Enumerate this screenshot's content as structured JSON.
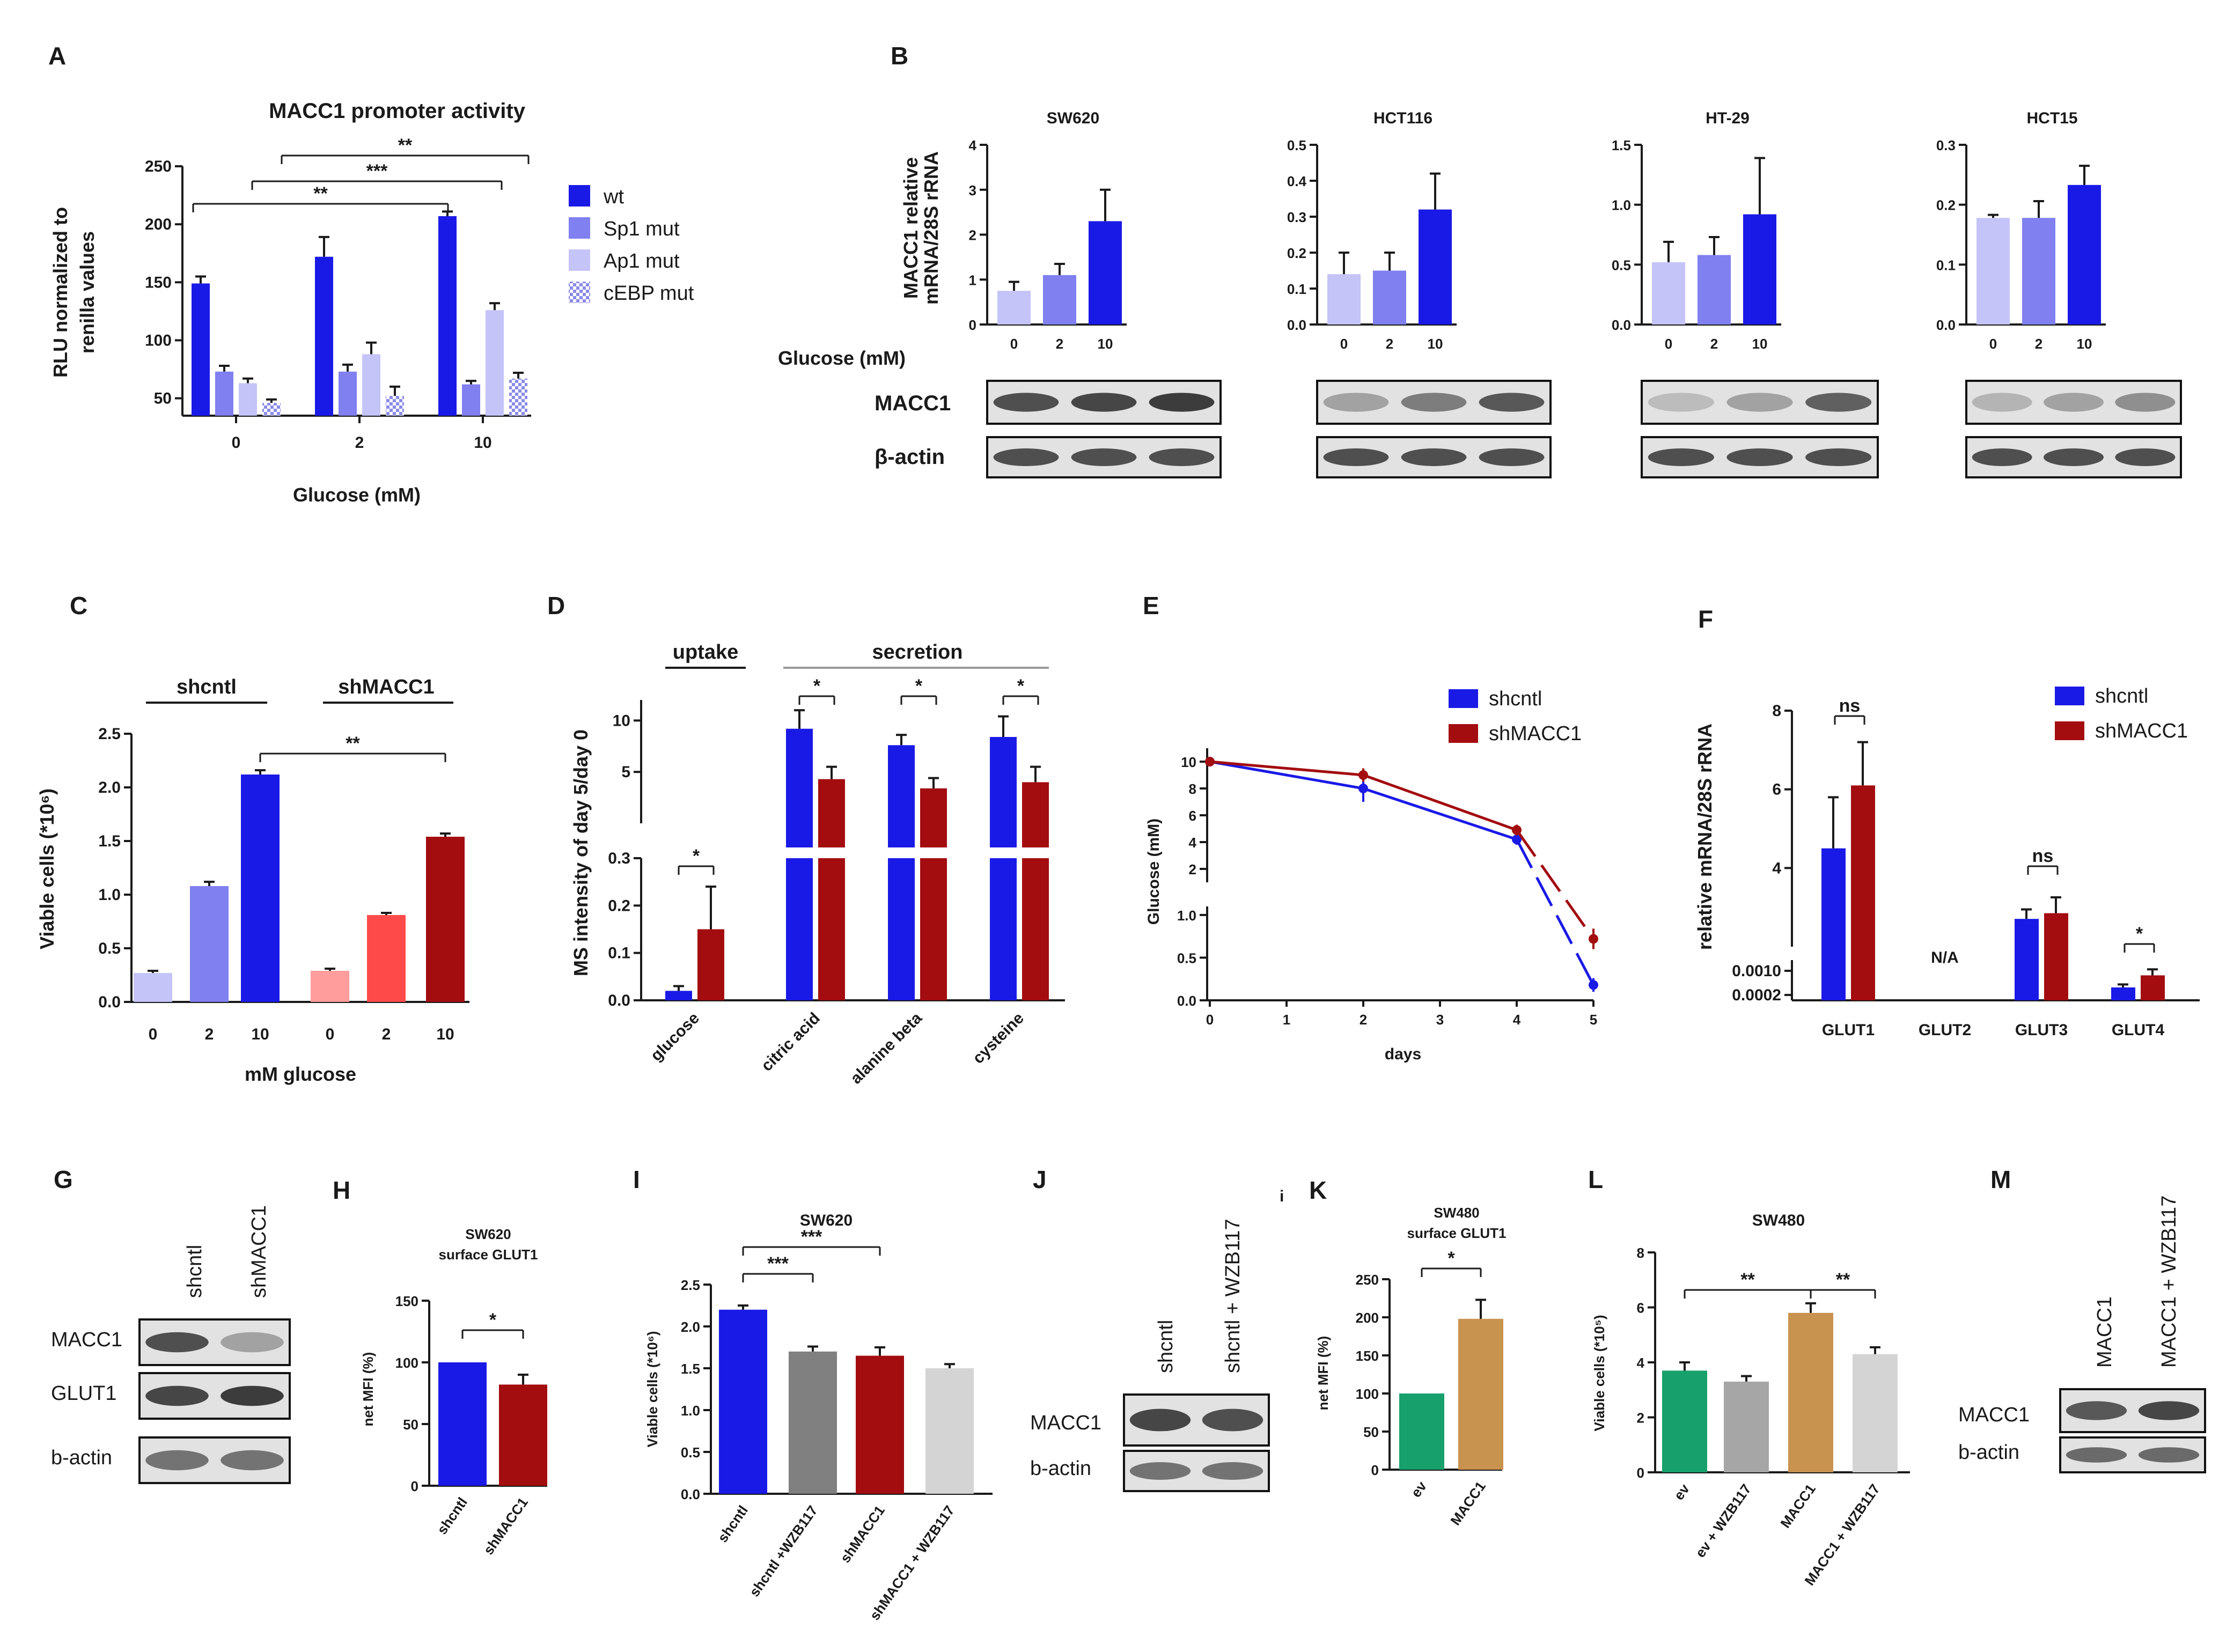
{
  "panels": {
    "A": "A",
    "B": "B",
    "C": "C",
    "D": "D",
    "E": "E",
    "F": "F",
    "G": "G",
    "H": "H",
    "I": "I",
    "J": "J",
    "K": "K",
    "L": "L",
    "M": "M"
  },
  "stray_mark": "i",
  "colors": {
    "blue": "#1a1ae6",
    "mid_blue": "#8080f0",
    "light_blue": "#c4c4f8",
    "dark_red": "#a30d10",
    "red": "#ff4a4a",
    "pink": "#ff9c9c",
    "gray": "#808080",
    "light_gray": "#d4d4d4",
    "green": "#17a06b",
    "tan": "#c8924f",
    "mid_gray": "#a6a6a6"
  },
  "chart_data": [
    {
      "id": "A",
      "type": "bar",
      "title": "MACC1 promoter activity",
      "ylabel": "RLU normalized to renilla values",
      "xlabel": "Glucose (mM)",
      "categories": [
        "0",
        "2",
        "10"
      ],
      "series": [
        {
          "name": "wt",
          "values": [
            149,
            172,
            207
          ],
          "errors": [
            6,
            17,
            4
          ]
        },
        {
          "name": "Sp1 mut",
          "values": [
            73,
            73,
            62
          ],
          "errors": [
            5,
            6,
            3
          ]
        },
        {
          "name": "Ap1 mut",
          "values": [
            63,
            88,
            126
          ],
          "errors": [
            4,
            10,
            6
          ]
        },
        {
          "name": "cEBP mut",
          "values": [
            46,
            52,
            67
          ],
          "errors": [
            3,
            8,
            5
          ]
        }
      ],
      "ylim": [
        35,
        250
      ],
      "yticks": [
        "50",
        "100",
        "150",
        "200",
        "250"
      ],
      "significance": [
        "**",
        "***",
        "**"
      ],
      "legend_placement": "right"
    },
    {
      "id": "B",
      "type": "bar",
      "ylabel": "MACC1 relative mRNA/28S rRNA",
      "xlabel": "Glucose (mM)",
      "categories": [
        "0",
        "2",
        "10"
      ],
      "subcharts": [
        {
          "title": "SW620",
          "values": [
            0.75,
            1.1,
            2.3
          ],
          "errors": [
            0.2,
            0.25,
            0.7
          ],
          "ylim": [
            0,
            4
          ],
          "yticks": [
            "0",
            "1",
            "2",
            "3",
            "4"
          ]
        },
        {
          "title": "HCT116",
          "values": [
            0.14,
            0.15,
            0.32
          ],
          "errors": [
            0.06,
            0.05,
            0.1
          ],
          "ylim": [
            0,
            0.5
          ],
          "yticks": [
            "0.0",
            "0.1",
            "0.2",
            "0.3",
            "0.4",
            "0.5"
          ]
        },
        {
          "title": "HT-29",
          "values": [
            0.52,
            0.58,
            0.92
          ],
          "errors": [
            0.17,
            0.15,
            0.47
          ],
          "ylim": [
            0,
            1.5
          ],
          "yticks": [
            "0.0",
            "0.5",
            "1.0",
            "1.5"
          ]
        },
        {
          "title": "HCT15",
          "values": [
            0.178,
            0.178,
            0.233
          ],
          "errors": [
            0.005,
            0.028,
            0.032
          ],
          "ylim": [
            0,
            0.3
          ],
          "yticks": [
            "0.0",
            "0.1",
            "0.2",
            "0.3"
          ]
        }
      ],
      "blot_labels": [
        "MACC1",
        "β-actin"
      ]
    },
    {
      "id": "C",
      "type": "bar",
      "ylabel": "Viable cells (*10⁶)",
      "xlabel": "mM glucose",
      "groups": [
        "shcntl",
        "shMACC1"
      ],
      "categories": [
        "0",
        "2",
        "10",
        "0",
        "2",
        "10"
      ],
      "values": [
        0.27,
        1.08,
        2.12,
        0.29,
        0.81,
        1.54
      ],
      "errors": [
        0.02,
        0.04,
        0.04,
        0.02,
        0.02,
        0.03
      ],
      "ylim": [
        0,
        2.5
      ],
      "yticks": [
        "0.0",
        "0.5",
        "1.0",
        "1.5",
        "2.0",
        "2.5"
      ],
      "significance": [
        "**"
      ]
    },
    {
      "id": "D",
      "type": "bar",
      "ylabel": "MS intensity of day 5/day 0",
      "groups": [
        "uptake",
        "secretion"
      ],
      "categories": [
        "glucose",
        "citric acid",
        "alanine beta",
        "cysteine"
      ],
      "series": [
        {
          "name": "shcntl",
          "values": [
            0.02,
            9.2,
            7.6,
            8.4
          ],
          "errors": [
            0.01,
            1.8,
            1.0,
            2.0
          ]
        },
        {
          "name": "shMACC1",
          "values": [
            0.15,
            4.3,
            3.4,
            4.0
          ],
          "errors": [
            0.09,
            1.2,
            1.0,
            1.5
          ]
        }
      ],
      "y_upper": {
        "ylim": [
          0,
          12
        ],
        "yticks": [
          "5",
          "10"
        ]
      },
      "y_lower": {
        "ylim": [
          0,
          0.3
        ],
        "yticks": [
          "0.0",
          "0.1",
          "0.2",
          "0.3"
        ]
      },
      "significance": [
        "*",
        "*",
        "*",
        "*"
      ]
    },
    {
      "id": "E",
      "type": "line",
      "ylabel": "Glucose (mM)",
      "xlabel": "days",
      "x": [
        0,
        2,
        4,
        5
      ],
      "series": [
        {
          "name": "shcntl",
          "values": [
            10,
            8,
            4.2,
            0.18
          ],
          "errors": [
            0.3,
            1.0,
            0.4,
            0.08
          ]
        },
        {
          "name": "shMACC1",
          "values": [
            10,
            9,
            4.9,
            0.72
          ],
          "errors": [
            0.3,
            0.5,
            0.4,
            0.12
          ]
        }
      ],
      "xticks": [
        "0",
        "1",
        "2",
        "3",
        "4",
        "5"
      ],
      "y_upper": {
        "ylim": [
          0,
          11
        ],
        "yticks": [
          "2",
          "4",
          "6",
          "8",
          "10"
        ]
      },
      "y_lower": {
        "ylim": [
          0,
          1.1
        ],
        "yticks": [
          "0.0",
          "0.5",
          "1.0"
        ]
      },
      "legend_placement": "top-right"
    },
    {
      "id": "F",
      "type": "bar",
      "ylabel": "relative mRNA/28S rRNA",
      "categories": [
        "GLUT1",
        "GLUT2",
        "GLUT3",
        "GLUT4"
      ],
      "series": [
        {
          "name": "shcntl",
          "values": [
            4.5,
            null,
            0.0075,
            0.00045
          ],
          "errors": [
            1.3,
            null,
            0.0015,
            0.0001
          ]
        },
        {
          "name": "shMACC1",
          "values": [
            6.1,
            null,
            0.0084,
            0.00085
          ],
          "errors": [
            1.1,
            null,
            0.0025,
            0.0002
          ]
        }
      ],
      "na_label": "N/A",
      "yticks_upper": [
        "4",
        "6",
        "8"
      ],
      "yticks_lower": [
        "0.0010",
        "0.0002"
      ],
      "significance": [
        "ns",
        "ns",
        "*"
      ],
      "legend_placement": "top-right"
    },
    {
      "id": "G",
      "type": "table",
      "columns": [
        "shcntl",
        "shMACC1"
      ],
      "rows": [
        "MACC1",
        "GLUT1",
        "b-actin"
      ]
    },
    {
      "id": "H",
      "type": "bar",
      "title": "SW620 surface GLUT1",
      "title_lines": [
        "SW620",
        "surface GLUT1"
      ],
      "ylabel": "net MFI (%)",
      "categories": [
        "shcntl",
        "shMACC1"
      ],
      "values": [
        100,
        82
      ],
      "errors": [
        0,
        8
      ],
      "ylim": [
        0,
        150
      ],
      "yticks": [
        "0",
        "50",
        "100",
        "150"
      ],
      "significance": [
        "*"
      ]
    },
    {
      "id": "I",
      "type": "bar",
      "title": "SW620",
      "ylabel": "Viable cells (*10⁶)",
      "categories": [
        "shcntl",
        "shcntl +WZB117",
        "shMACC1",
        "shMACC1 + WZB117"
      ],
      "values": [
        2.2,
        1.7,
        1.65,
        1.5
      ],
      "errors": [
        0.05,
        0.06,
        0.1,
        0.05
      ],
      "ylim": [
        0,
        2.5
      ],
      "yticks": [
        "0.0",
        "0.5",
        "1.0",
        "1.5",
        "2.0",
        "2.5"
      ],
      "significance": [
        "***",
        "***"
      ]
    },
    {
      "id": "J",
      "type": "table",
      "columns": [
        "shcntl",
        "shcntl + WZB117"
      ],
      "rows": [
        "MACC1",
        "b-actin"
      ]
    },
    {
      "id": "K",
      "type": "bar",
      "title": "SW480 surface GLUT1",
      "title_lines": [
        "SW480",
        "surface GLUT1"
      ],
      "ylabel": "net MFI (%)",
      "categories": [
        "ev",
        "MACC1"
      ],
      "values": [
        100,
        198
      ],
      "errors": [
        0,
        25
      ],
      "ylim": [
        0,
        250
      ],
      "yticks": [
        "0",
        "50",
        "100",
        "150",
        "200",
        "250"
      ],
      "significance": [
        "*"
      ]
    },
    {
      "id": "L",
      "type": "bar",
      "title": "SW480",
      "ylabel": "Viable cells (*10⁵)",
      "categories": [
        "ev",
        "ev + WZB117",
        "MACC1",
        "MACC1 + WZB117"
      ],
      "values": [
        3.7,
        3.3,
        5.8,
        4.3
      ],
      "errors": [
        0.3,
        0.2,
        0.35,
        0.25
      ],
      "ylim": [
        0,
        8
      ],
      "yticks": [
        "0",
        "2",
        "4",
        "6",
        "8"
      ],
      "significance": [
        "**",
        "**"
      ]
    },
    {
      "id": "M",
      "type": "table",
      "columns": [
        "MACC1",
        "MACC1 + WZB117"
      ],
      "rows": [
        "MACC1",
        "b-actin"
      ]
    }
  ]
}
